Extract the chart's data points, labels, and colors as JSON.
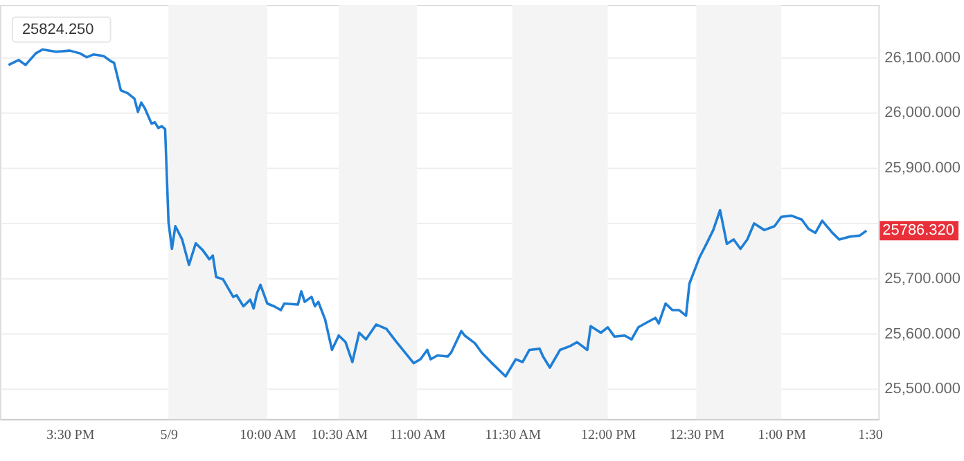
{
  "chart_data": {
    "type": "line",
    "categories": [
      null,
      null,
      null,
      null,
      null,
      null,
      null,
      null,
      null,
      null,
      null,
      null,
      null,
      null,
      null,
      null,
      null,
      null,
      null,
      null,
      "3:30 PM",
      null,
      null,
      null,
      null,
      null,
      null,
      null,
      null,
      null,
      null,
      null,
      null,
      null,
      null,
      null,
      null,
      null,
      null,
      null,
      null,
      null,
      null,
      null,
      null,
      null,
      null,
      null,
      null,
      "5/9",
      null,
      null,
      null,
      null,
      null,
      null,
      null,
      null,
      null,
      null,
      null,
      null,
      null,
      null,
      null,
      null,
      null,
      null,
      null,
      null,
      null,
      null,
      null,
      null,
      null,
      null,
      null,
      null,
      "10:00 AM",
      null,
      null,
      null,
      null,
      null,
      null,
      null,
      null,
      null,
      null,
      null,
      null,
      null,
      null,
      null,
      null,
      null,
      null,
      null,
      null,
      "10:30 AM",
      null,
      null,
      null,
      null,
      null,
      null,
      null,
      null,
      null,
      null,
      null,
      null,
      null,
      null,
      null,
      null,
      null,
      null,
      null,
      null,
      null,
      null,
      "11:00 AM",
      null,
      null,
      null,
      null,
      null,
      null,
      null,
      null,
      null,
      null,
      null,
      null,
      null,
      null,
      null,
      null,
      null,
      null,
      null,
      null,
      null,
      null,
      null,
      null,
      null,
      null,
      null,
      "11:30 AM",
      null,
      null,
      null,
      null,
      null,
      null,
      null,
      null,
      null,
      null,
      null,
      null,
      null,
      null,
      null,
      null,
      null,
      null,
      null,
      null,
      null,
      null,
      null,
      null,
      null,
      null,
      null,
      "12:00 PM",
      null,
      null,
      null,
      null,
      null,
      null,
      null,
      null,
      null,
      null,
      null,
      null,
      null,
      null,
      null,
      null,
      null,
      null,
      null,
      null,
      null,
      null,
      null,
      null,
      null,
      "12:30 PM",
      null,
      null,
      null,
      null,
      null,
      null,
      null,
      null,
      null,
      null,
      null,
      null,
      null,
      null,
      null,
      null,
      null,
      null,
      null,
      null,
      null,
      null,
      null,
      null,
      "1:00 PM",
      null,
      null,
      null,
      null,
      null,
      null,
      null,
      null,
      null,
      null,
      null,
      null,
      null,
      null,
      null,
      null,
      null,
      null,
      null,
      null,
      null,
      null,
      null,
      null,
      null,
      "1:30",
      null,
      null
    ],
    "series": [
      {
        "color": "#1f7fd6",
        "values": [
          null,
          null,
          26086,
          null,
          null,
          26095,
          null,
          26086,
          null,
          null,
          26107,
          null,
          26114,
          null,
          null,
          null,
          26110,
          null,
          null,
          null,
          26112,
          null,
          null,
          26107,
          null,
          26100,
          null,
          26105,
          null,
          null,
          26102,
          null,
          26093,
          26090,
          null,
          26040,
          null,
          26035,
          null,
          26025,
          26001,
          26018,
          26008,
          null,
          25980,
          25982,
          25972,
          25975,
          25970,
          25801,
          25753,
          25794,
          null,
          25770,
          null,
          25724,
          null,
          25763,
          null,
          25751,
          null,
          25734,
          25741,
          25702,
          null,
          25698,
          null,
          null,
          25666,
          25669,
          null,
          25649,
          null,
          25661,
          25645,
          25673,
          25688,
          null,
          25654,
          null,
          25649,
          null,
          25642,
          25654,
          null,
          null,
          null,
          25652,
          25676,
          25657,
          null,
          25666,
          25649,
          25657,
          null,
          25625,
          null,
          25570,
          null,
          25596,
          null,
          25584,
          null,
          25548,
          null,
          25601,
          null,
          25589,
          null,
          null,
          25616,
          null,
          null,
          25608,
          null,
          null,
          25584,
          null,
          null,
          null,
          null,
          25546,
          null,
          25553,
          null,
          25570,
          25553,
          null,
          25560,
          null,
          null,
          25558,
          25565,
          null,
          null,
          25604,
          25596,
          null,
          null,
          25582,
          null,
          25565,
          null,
          null,
          25546,
          null,
          null,
          null,
          25522,
          null,
          null,
          25553,
          null,
          25548,
          null,
          25570,
          null,
          null,
          25572,
          25558,
          null,
          25538,
          null,
          null,
          25570,
          null,
          null,
          25577,
          null,
          25584,
          null,
          null,
          25570,
          25613,
          null,
          null,
          25601,
          null,
          25611,
          null,
          25594,
          null,
          null,
          25596,
          null,
          25589,
          null,
          25611,
          null,
          25618,
          null,
          null,
          25628,
          25618,
          null,
          25654,
          null,
          25642,
          null,
          25642,
          null,
          25632,
          25690,
          null,
          null,
          25738,
          null,
          25762,
          null,
          25787,
          null,
          25823,
          null,
          25762,
          null,
          25770,
          null,
          25753,
          null,
          25770,
          null,
          25799,
          null,
          null,
          25787,
          null,
          null,
          25794,
          null,
          25811,
          null,
          null,
          25813,
          null,
          null,
          25806,
          null,
          25789,
          null,
          25782,
          null,
          25804,
          null,
          null,
          25782,
          null,
          25770,
          null,
          null,
          25775,
          null,
          null,
          25777,
          null,
          25786,
          null,
          null,
          null
        ]
      }
    ],
    "ylim": [
      25445,
      26195
    ],
    "yticks": [
      {
        "value": 25500,
        "label": "25,500.000"
      },
      {
        "value": 25600,
        "label": "25,600.000"
      },
      {
        "value": 25700,
        "label": "25,700.000"
      },
      {
        "value": 25800,
        "label": null
      },
      {
        "value": 25900,
        "label": "25,900.000"
      },
      {
        "value": 26000,
        "label": "26,000.000"
      },
      {
        "value": 26100,
        "label": "26,100.000"
      }
    ],
    "grid": "y",
    "bands": [
      {
        "axis": "x",
        "from": "5/9",
        "to": "10:00 AM",
        "color": "#f4f4f4"
      },
      {
        "axis": "x",
        "from": "10:30 AM",
        "to": "11:00 AM",
        "color": "#f4f4f4"
      },
      {
        "axis": "x",
        "from": "11:30 AM",
        "to": "12:00 PM",
        "color": "#f4f4f4"
      },
      {
        "axis": "x",
        "from": "12:30 PM",
        "to": "1:00 PM",
        "color": "#f4f4f4"
      }
    ],
    "annotations": [
      "25824.250",
      "25786.320"
    ]
  }
}
